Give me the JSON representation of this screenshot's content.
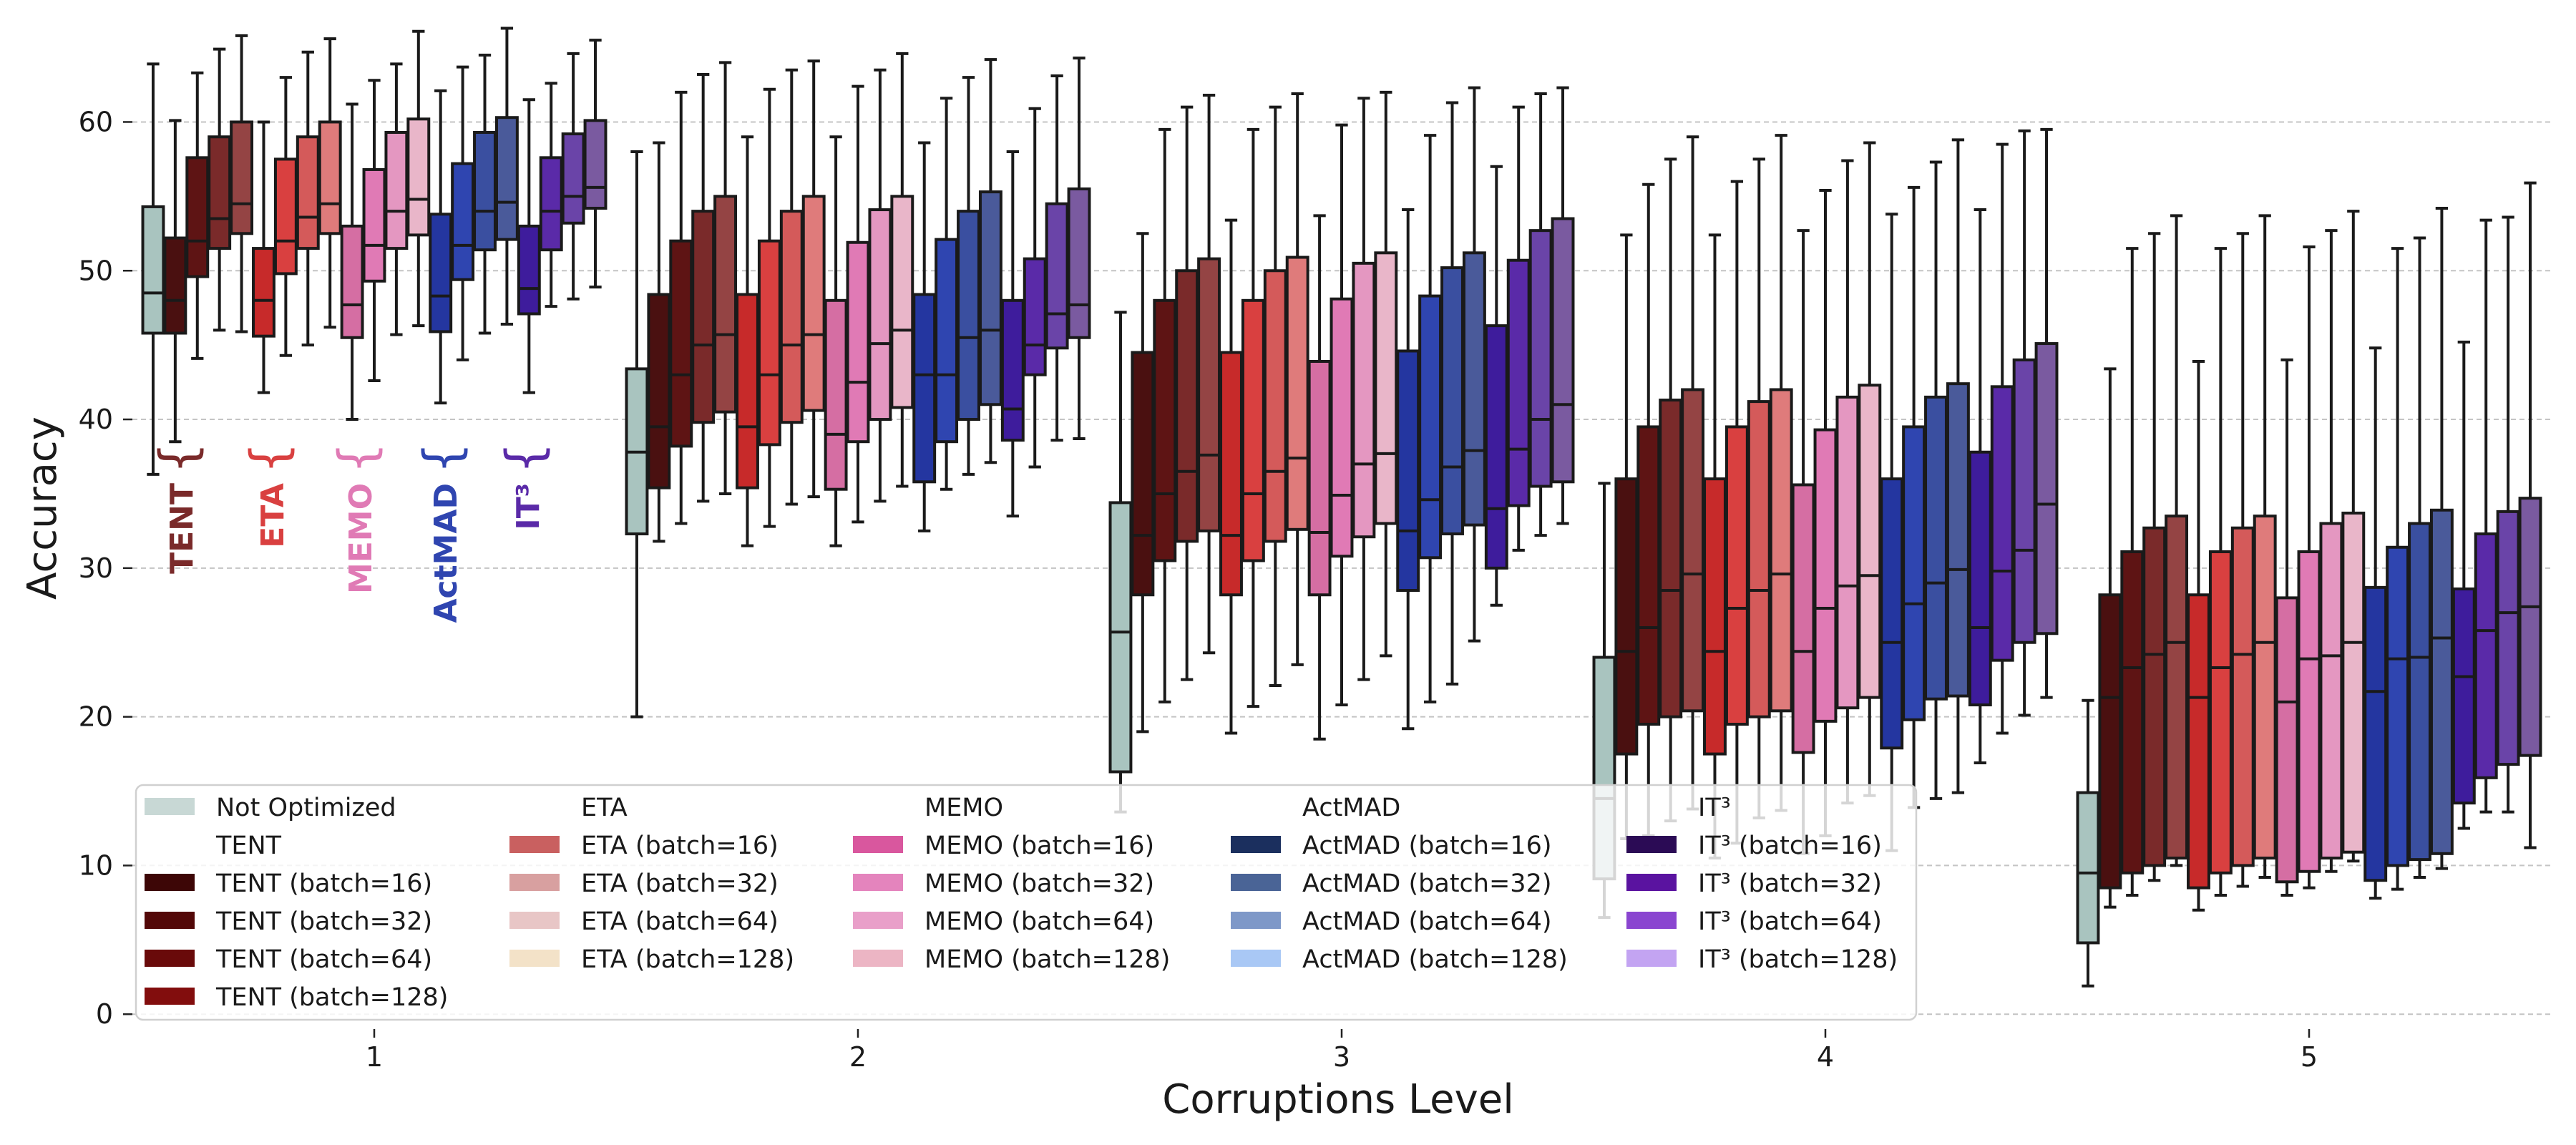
{
  "chart_data": {
    "type": "box",
    "title": "",
    "xlabel": "Corruptions Level",
    "ylabel": "Accuracy",
    "ylim": [
      -1,
      67
    ],
    "yticks": [
      0,
      10,
      20,
      30,
      40,
      50,
      60
    ],
    "grid": "horizontal dashed",
    "categories": [
      "1",
      "2",
      "3",
      "4",
      "5"
    ],
    "annotations": [
      {
        "text": "TENT",
        "color": "#7a2a2a",
        "level": "1"
      },
      {
        "text": "ETA",
        "color": "#d94040",
        "level": "1"
      },
      {
        "text": "MEMO",
        "color": "#e07ab5",
        "level": "1"
      },
      {
        "text": "ActMAD",
        "color": "#2f45b0",
        "level": "1"
      },
      {
        "text": "IT³",
        "color": "#5a2aa8",
        "level": "1"
      }
    ],
    "series": [
      {
        "name": "Not Optimized",
        "color": "#a9c4bf",
        "stats": [
          [
            36.3,
            45.8,
            48.5,
            54.3,
            63.9
          ],
          [
            20.0,
            32.3,
            37.8,
            43.4,
            58.0
          ],
          [
            13.6,
            16.3,
            25.7,
            34.4,
            47.2
          ],
          [
            6.5,
            9.1,
            14.5,
            24.0,
            35.7
          ],
          [
            1.9,
            4.8,
            9.5,
            14.9,
            21.1
          ]
        ]
      },
      {
        "name": "TENT (batch=16)",
        "color": "#4a1010",
        "stats": [
          [
            38.5,
            45.8,
            48.0,
            52.2,
            60.1
          ],
          [
            31.8,
            35.4,
            39.5,
            48.4,
            58.6
          ],
          [
            19.0,
            28.2,
            32.2,
            44.5,
            52.5
          ],
          [
            11.8,
            17.5,
            24.4,
            36.0,
            52.4
          ],
          [
            7.2,
            8.5,
            21.3,
            28.2,
            43.4
          ]
        ]
      },
      {
        "name": "TENT (batch=32)",
        "color": "#5e1414",
        "stats": [
          [
            44.1,
            49.6,
            52.0,
            57.6,
            63.3
          ],
          [
            33.0,
            38.2,
            43.0,
            52.0,
            62.0
          ],
          [
            21.0,
            30.5,
            35.0,
            48.0,
            59.5
          ],
          [
            12.0,
            19.5,
            26.0,
            39.5,
            55.8
          ],
          [
            8.0,
            9.5,
            23.3,
            31.1,
            51.5
          ]
        ]
      },
      {
        "name": "TENT (batch=64)",
        "color": "#7a2a2a",
        "stats": [
          [
            46.0,
            51.5,
            53.5,
            59.0,
            64.9
          ],
          [
            34.5,
            39.8,
            45.0,
            54.0,
            63.2
          ],
          [
            22.5,
            31.8,
            36.5,
            50.0,
            61.0
          ],
          [
            13.0,
            20.0,
            28.5,
            41.3,
            57.5
          ],
          [
            9.0,
            10.0,
            24.2,
            32.7,
            52.5
          ]
        ]
      },
      {
        "name": "TENT (batch=128)",
        "color": "#944444",
        "stats": [
          [
            45.9,
            52.5,
            54.5,
            60.0,
            65.8
          ],
          [
            35.0,
            40.5,
            45.7,
            55.0,
            64.0
          ],
          [
            24.3,
            32.5,
            37.6,
            50.8,
            61.8
          ],
          [
            13.8,
            20.4,
            29.6,
            42.0,
            59.0
          ],
          [
            10.0,
            10.5,
            25.0,
            33.5,
            53.7
          ]
        ]
      },
      {
        "name": "ETA (batch=16)",
        "color": "#c72a2a",
        "stats": [
          [
            41.8,
            45.6,
            48.0,
            51.5,
            60.0
          ],
          [
            31.5,
            35.4,
            39.5,
            48.4,
            59.0
          ],
          [
            18.9,
            28.2,
            32.2,
            44.5,
            53.4
          ],
          [
            10.5,
            17.5,
            24.4,
            36.0,
            52.4
          ],
          [
            7.0,
            8.5,
            21.3,
            28.2,
            43.9
          ]
        ]
      },
      {
        "name": "ETA (batch=32)",
        "color": "#d94040",
        "stats": [
          [
            44.3,
            49.8,
            52.0,
            57.5,
            63.0
          ],
          [
            32.8,
            38.3,
            43.0,
            52.0,
            62.2
          ],
          [
            20.7,
            30.5,
            35.0,
            48.0,
            59.5
          ],
          [
            11.5,
            19.5,
            27.3,
            39.5,
            56.0
          ],
          [
            8.0,
            9.5,
            23.3,
            31.1,
            51.5
          ]
        ]
      },
      {
        "name": "ETA (batch=64)",
        "color": "#d45a5a",
        "stats": [
          [
            45.0,
            51.5,
            53.6,
            59.0,
            64.7
          ],
          [
            34.3,
            39.8,
            45.0,
            54.0,
            63.5
          ],
          [
            22.1,
            31.8,
            36.5,
            50.0,
            61.0
          ],
          [
            13.2,
            20.0,
            28.5,
            41.2,
            57.5
          ],
          [
            8.6,
            10.0,
            24.2,
            32.7,
            52.5
          ]
        ]
      },
      {
        "name": "ETA (batch=128)",
        "color": "#df7b7b",
        "stats": [
          [
            46.2,
            52.5,
            54.5,
            60.0,
            65.6
          ],
          [
            34.8,
            40.6,
            45.7,
            55.0,
            64.1
          ],
          [
            23.5,
            32.6,
            37.4,
            50.9,
            61.9
          ],
          [
            13.7,
            20.4,
            29.6,
            42.0,
            59.1
          ],
          [
            9.2,
            10.5,
            25.0,
            33.5,
            53.7
          ]
        ]
      },
      {
        "name": "MEMO (batch=16)",
        "color": "#d56ea3",
        "stats": [
          [
            40.0,
            45.5,
            47.7,
            53.0,
            61.2
          ],
          [
            31.5,
            35.3,
            39.0,
            48.0,
            59.0
          ],
          [
            18.5,
            28.2,
            32.4,
            43.9,
            53.7
          ],
          [
            10.8,
            17.6,
            24.4,
            35.6,
            52.7
          ],
          [
            8.0,
            8.9,
            21.0,
            28.0,
            44.0
          ]
        ]
      },
      {
        "name": "MEMO (batch=32)",
        "color": "#e07ab5",
        "stats": [
          [
            42.6,
            49.3,
            51.7,
            56.8,
            62.8
          ],
          [
            33.1,
            38.5,
            42.5,
            51.9,
            62.4
          ],
          [
            20.8,
            30.8,
            34.9,
            48.1,
            59.8
          ],
          [
            12.0,
            19.7,
            27.3,
            39.3,
            55.4
          ],
          [
            8.5,
            9.6,
            23.9,
            31.1,
            51.6
          ]
        ]
      },
      {
        "name": "MEMO (batch=64)",
        "color": "#e497c1",
        "stats": [
          [
            45.7,
            51.5,
            54.0,
            59.3,
            63.9
          ],
          [
            34.5,
            40.0,
            45.1,
            54.1,
            63.5
          ],
          [
            22.5,
            32.1,
            37.0,
            50.5,
            61.6
          ],
          [
            14.2,
            20.6,
            28.8,
            41.5,
            57.4
          ],
          [
            9.6,
            10.5,
            24.1,
            33.0,
            52.7
          ]
        ]
      },
      {
        "name": "MEMO (batch=128)",
        "color": "#e9b6c9",
        "stats": [
          [
            46.3,
            52.4,
            54.8,
            60.2,
            66.1
          ],
          [
            35.5,
            40.8,
            46.0,
            55.0,
            64.6
          ],
          [
            24.1,
            33.0,
            37.7,
            51.2,
            62.0
          ],
          [
            14.7,
            21.3,
            29.5,
            42.3,
            58.6
          ],
          [
            10.3,
            10.9,
            25.0,
            33.7,
            54.0
          ]
        ]
      },
      {
        "name": "ActMAD (batch=16)",
        "color": "#2436a0",
        "stats": [
          [
            41.1,
            45.9,
            48.3,
            53.8,
            62.1
          ],
          [
            32.5,
            35.8,
            43.0,
            48.4,
            58.6
          ],
          [
            19.2,
            28.5,
            32.5,
            44.6,
            54.1
          ],
          [
            11.0,
            17.9,
            25.0,
            36.0,
            53.8
          ],
          [
            7.8,
            9.0,
            21.7,
            28.7,
            44.8
          ]
        ]
      },
      {
        "name": "ActMAD (batch=32)",
        "color": "#2f45b0",
        "stats": [
          [
            44.0,
            49.4,
            51.7,
            57.2,
            63.7
          ],
          [
            35.3,
            38.5,
            43.0,
            52.1,
            61.6
          ],
          [
            21.0,
            30.7,
            34.6,
            48.3,
            59.1
          ],
          [
            13.9,
            19.8,
            27.6,
            39.5,
            55.6
          ],
          [
            8.4,
            10.0,
            23.9,
            31.4,
            51.5
          ]
        ]
      },
      {
        "name": "ActMAD (batch=64)",
        "color": "#3a4fa0",
        "stats": [
          [
            45.8,
            51.4,
            54.0,
            59.3,
            64.5
          ],
          [
            36.3,
            40.0,
            45.5,
            54.0,
            63.0
          ],
          [
            22.2,
            32.3,
            36.8,
            50.2,
            61.3
          ],
          [
            14.5,
            21.2,
            29.0,
            41.5,
            57.3
          ],
          [
            9.2,
            10.4,
            24.0,
            33.0,
            52.2
          ]
        ]
      },
      {
        "name": "ActMAD (batch=128)",
        "color": "#4a5a9a",
        "stats": [
          [
            46.4,
            52.1,
            54.6,
            60.3,
            66.3
          ],
          [
            37.1,
            41.0,
            46.0,
            55.3,
            64.2
          ],
          [
            25.1,
            32.9,
            37.9,
            51.2,
            62.3
          ],
          [
            14.9,
            21.4,
            29.9,
            42.4,
            58.8
          ],
          [
            9.8,
            10.8,
            25.3,
            33.9,
            54.2
          ]
        ]
      },
      {
        "name": "IT³ (batch=16)",
        "color": "#3e1c9c",
        "stats": [
          [
            41.8,
            47.1,
            48.8,
            53.0,
            61.5
          ],
          [
            33.5,
            38.6,
            40.7,
            48.0,
            58.0
          ],
          [
            27.5,
            30.0,
            34.0,
            46.3,
            57.0
          ],
          [
            16.9,
            20.8,
            26.0,
            37.8,
            54.1
          ],
          [
            12.5,
            14.2,
            22.7,
            28.6,
            45.2
          ]
        ]
      },
      {
        "name": "IT³ (batch=32)",
        "color": "#5a2aa8",
        "stats": [
          [
            47.6,
            51.4,
            54.0,
            57.6,
            62.6
          ],
          [
            36.8,
            43.0,
            45.0,
            50.8,
            60.9
          ],
          [
            31.2,
            34.2,
            38.0,
            50.7,
            61.0
          ],
          [
            18.9,
            23.8,
            29.8,
            42.2,
            58.5
          ],
          [
            13.6,
            15.9,
            25.8,
            32.3,
            53.4
          ]
        ]
      },
      {
        "name": "IT³ (batch=64)",
        "color": "#6a44a8",
        "stats": [
          [
            48.1,
            53.2,
            55.0,
            59.2,
            64.6
          ],
          [
            38.6,
            44.8,
            47.1,
            54.5,
            63.1
          ],
          [
            32.2,
            35.5,
            40.0,
            52.7,
            61.9
          ],
          [
            20.1,
            25.0,
            31.2,
            44.0,
            59.4
          ],
          [
            13.6,
            16.8,
            27.0,
            33.8,
            53.6
          ]
        ]
      },
      {
        "name": "IT³ (batch=128)",
        "color": "#7a5aa0",
        "stats": [
          [
            48.9,
            54.2,
            55.6,
            60.1,
            65.5
          ],
          [
            38.7,
            45.5,
            47.7,
            55.5,
            64.3
          ],
          [
            33.0,
            35.8,
            41.0,
            53.5,
            62.3
          ],
          [
            21.3,
            25.6,
            34.3,
            45.1,
            59.5
          ],
          [
            11.2,
            17.4,
            27.4,
            34.7,
            55.9
          ]
        ]
      }
    ],
    "legend": {
      "placement": "lower-left",
      "columns": [
        [
          {
            "label": "Not Optimized",
            "color": "#c8d8d5"
          },
          {
            "label": "TENT",
            "color": ""
          },
          {
            "label": "TENT (batch=16)",
            "color": "#3d0606"
          },
          {
            "label": "TENT (batch=32)",
            "color": "#530808"
          },
          {
            "label": "TENT (batch=64)",
            "color": "#690a0a"
          },
          {
            "label": "TENT (batch=128)",
            "color": "#820d0d"
          }
        ],
        [
          {
            "label": "ETA",
            "color": ""
          },
          {
            "label": "ETA (batch=16)",
            "color": "#c96060"
          },
          {
            "label": "ETA (batch=32)",
            "color": "#d8a0a0"
          },
          {
            "label": "ETA (batch=64)",
            "color": "#e8c6c6"
          },
          {
            "label": "ETA (batch=128)",
            "color": "#f3e2c8"
          }
        ],
        [
          {
            "label": "MEMO",
            "color": ""
          },
          {
            "label": "MEMO (batch=16)",
            "color": "#d9579e"
          },
          {
            "label": "MEMO (batch=32)",
            "color": "#e484bd"
          },
          {
            "label": "MEMO (batch=64)",
            "color": "#e99fc9"
          },
          {
            "label": "MEMO (batch=128)",
            "color": "#ecb5c4"
          }
        ],
        [
          {
            "label": "ActMAD",
            "color": ""
          },
          {
            "label": "ActMAD (batch=16)",
            "color": "#1b2f5e"
          },
          {
            "label": "ActMAD (batch=32)",
            "color": "#4a6496"
          },
          {
            "label": "ActMAD (batch=64)",
            "color": "#7e98c8"
          },
          {
            "label": "ActMAD (batch=128)",
            "color": "#a9c8f5"
          }
        ],
        [
          {
            "label": "IT³",
            "color": ""
          },
          {
            "label": "IT³ (batch=16)",
            "color": "#2b0b55"
          },
          {
            "label": "IT³ (batch=32)",
            "color": "#5a13a0"
          },
          {
            "label": "IT³ (batch=64)",
            "color": "#8a45d0"
          },
          {
            "label": "IT³ (batch=128)",
            "color": "#c3a4f2"
          }
        ]
      ]
    }
  }
}
